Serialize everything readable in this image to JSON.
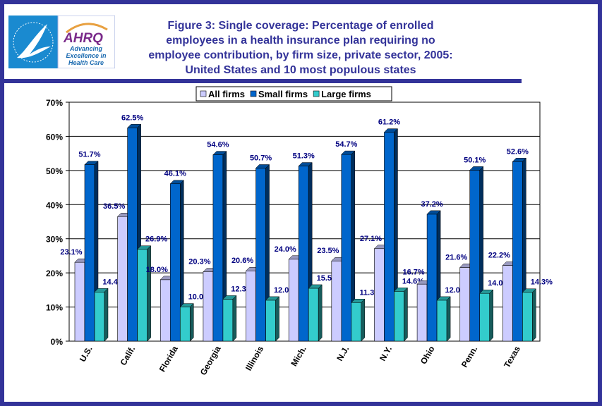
{
  "logo": {
    "agency": "AHRQ",
    "tagline": [
      "Advancing",
      "Excellence in",
      "Health Care"
    ]
  },
  "colors": {
    "border": "#333399",
    "all": "#ccccff",
    "small": "#0066cc",
    "large": "#33cccc",
    "label": "#000080"
  },
  "chart_data": {
    "type": "bar",
    "title": "Figure 3: Single coverage: Percentage of enrolled employees in a health insurance  plan requiring no employee contribution, by firm size, private sector, 2005: United States and 10 most populous states",
    "title_lines": [
      "Figure 3: Single coverage: Percentage of enrolled",
      "employees in a health insurance  plan requiring no",
      "employee contribution, by firm size, private sector, 2005:",
      "United States and 10 most populous states"
    ],
    "categories": [
      "U.S.",
      "Calif.",
      "Florida",
      "Georgia",
      "Illinois",
      "Mich.",
      "N.J.",
      "N.Y.",
      "Ohio",
      "Penn.",
      "Texas"
    ],
    "series": [
      {
        "name": "All firms",
        "values": [
          23.1,
          36.5,
          18.0,
          20.3,
          20.6,
          24.0,
          23.5,
          27.1,
          16.7,
          21.6,
          22.2
        ]
      },
      {
        "name": "Small firms",
        "values": [
          51.7,
          62.5,
          46.1,
          54.6,
          50.7,
          51.3,
          54.7,
          61.2,
          37.2,
          50.1,
          52.6
        ]
      },
      {
        "name": "Large firms",
        "values": [
          14.4,
          26.9,
          10.0,
          12.3,
          12.0,
          15.5,
          11.3,
          14.6,
          12.0,
          14.0,
          14.3
        ]
      }
    ],
    "ylim": [
      0,
      70
    ],
    "yticks": [
      "0%",
      "10%",
      "20%",
      "30%",
      "40%",
      "50%",
      "60%",
      "70%"
    ],
    "legend": "top-center",
    "grid": true
  }
}
